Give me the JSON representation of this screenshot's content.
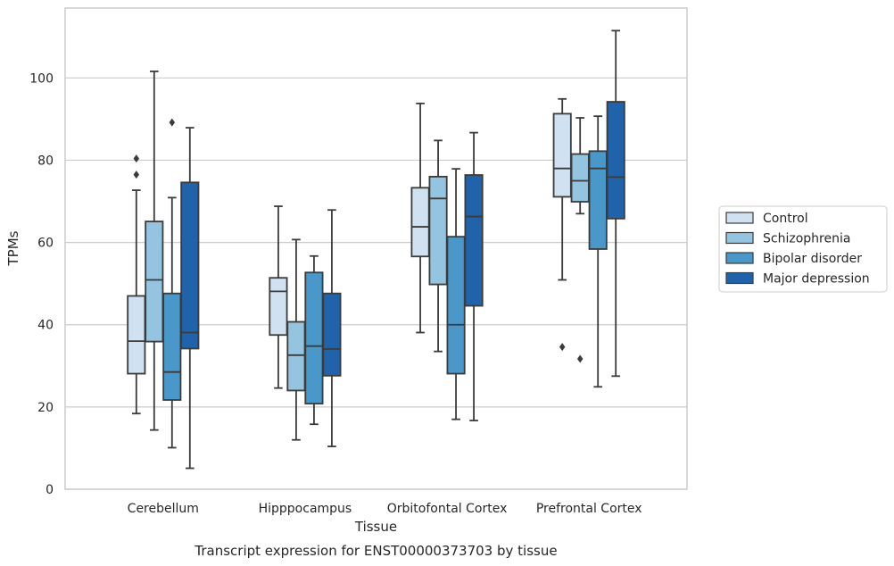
{
  "chart_data": {
    "type": "boxplot",
    "xlabel": "Tissue",
    "ylabel": "TPMs",
    "caption": "Transcript expression for ENST00000373703 by tissue",
    "ylim": [
      0,
      117
    ],
    "yticks": [
      0,
      20,
      40,
      60,
      80,
      100
    ],
    "grid": "horizontal",
    "legend_position": "right",
    "categories": [
      "Cerebellum",
      "Hipppocampus",
      "Orbitofontal Cortex",
      "Prefrontal Cortex"
    ],
    "series": [
      {
        "name": "Control",
        "color": "#d0e1f2",
        "boxes": [
          {
            "whislo": 18.4,
            "q1": 28.1,
            "med": 36.0,
            "q3": 47.0,
            "whishi": 72.7,
            "fliers": [
              76.5,
              80.4
            ]
          },
          {
            "whislo": 24.6,
            "q1": 37.5,
            "med": 48.1,
            "q3": 51.4,
            "whishi": 68.8,
            "fliers": []
          },
          {
            "whislo": 38.1,
            "q1": 56.6,
            "med": 63.8,
            "q3": 73.3,
            "whishi": 93.8,
            "fliers": []
          },
          {
            "whislo": 50.9,
            "q1": 71.1,
            "med": 78.0,
            "q3": 91.3,
            "whishi": 94.9,
            "fliers": [
              34.6
            ]
          }
        ]
      },
      {
        "name": "Schizophrenia",
        "color": "#94c4df",
        "boxes": [
          {
            "whislo": 14.4,
            "q1": 35.9,
            "med": 50.9,
            "q3": 65.1,
            "whishi": 101.6,
            "fliers": []
          },
          {
            "whislo": 12.0,
            "q1": 24.0,
            "med": 32.6,
            "q3": 40.7,
            "whishi": 60.7,
            "fliers": []
          },
          {
            "whislo": 33.5,
            "q1": 49.8,
            "med": 70.7,
            "q3": 76.0,
            "whishi": 84.8,
            "fliers": []
          },
          {
            "whislo": 67.0,
            "q1": 69.9,
            "med": 75.0,
            "q3": 81.5,
            "whishi": 90.3,
            "fliers": [
              31.7
            ]
          }
        ]
      },
      {
        "name": "Bipolar disorder",
        "color": "#4a98c9",
        "boxes": [
          {
            "whislo": 10.1,
            "q1": 21.7,
            "med": 28.5,
            "q3": 47.6,
            "whishi": 70.9,
            "fliers": [
              89.2
            ]
          },
          {
            "whislo": 15.8,
            "q1": 20.8,
            "med": 34.8,
            "q3": 52.7,
            "whishi": 56.7,
            "fliers": []
          },
          {
            "whislo": 17.0,
            "q1": 28.1,
            "med": 40.0,
            "q3": 61.4,
            "whishi": 77.9,
            "fliers": []
          },
          {
            "whislo": 24.9,
            "q1": 58.4,
            "med": 78.0,
            "q3": 82.2,
            "whishi": 90.7,
            "fliers": []
          }
        ]
      },
      {
        "name": "Major depression",
        "color": "#2163aa",
        "boxes": [
          {
            "whislo": 5.1,
            "q1": 34.2,
            "med": 38.1,
            "q3": 74.6,
            "whishi": 87.9,
            "fliers": []
          },
          {
            "whislo": 10.4,
            "q1": 27.6,
            "med": 34.1,
            "q3": 47.6,
            "whishi": 67.9,
            "fliers": []
          },
          {
            "whislo": 16.7,
            "q1": 44.6,
            "med": 66.3,
            "q3": 76.4,
            "whishi": 86.7,
            "fliers": []
          },
          {
            "whislo": 27.5,
            "q1": 65.8,
            "med": 75.9,
            "q3": 94.2,
            "whishi": 111.5,
            "fliers": []
          }
        ]
      }
    ]
  }
}
